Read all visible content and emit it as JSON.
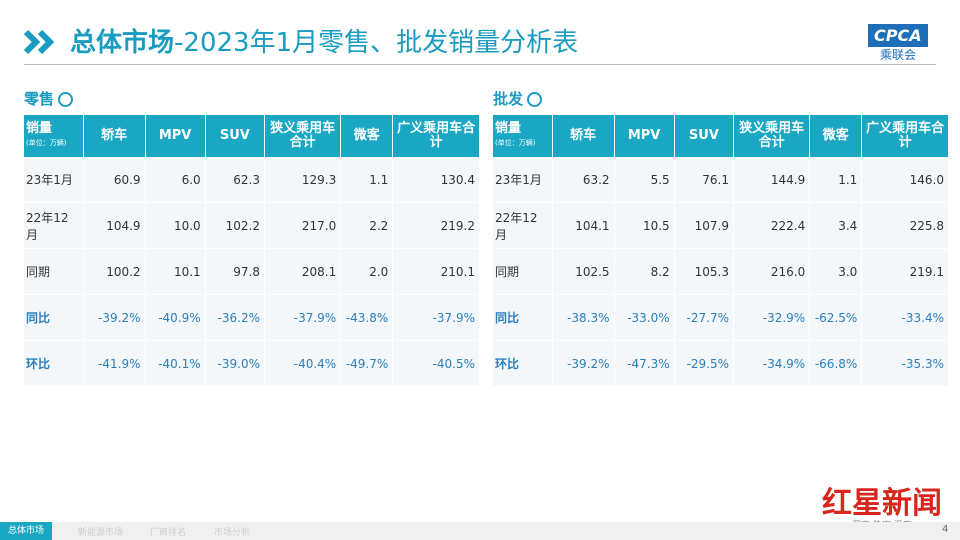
{
  "header": {
    "title_bold": "总体市场",
    "title_rest": "-2023年1月零售、批发销量分析表",
    "logo": "CPCA",
    "logo_sub": "乘联会"
  },
  "tables": [
    {
      "label": "零售",
      "columns": [
        "销量",
        "轿车",
        "MPV",
        "SUV",
        "狭义乘用车合计",
        "微客",
        "广义乘用车合计"
      ],
      "unit": "(单位：万辆)",
      "rows": [
        [
          "23年1月",
          "60.9",
          "6.0",
          "62.3",
          "129.3",
          "1.1",
          "130.4"
        ],
        [
          "22年12月",
          "104.9",
          "10.0",
          "102.2",
          "217.0",
          "2.2",
          "219.2"
        ],
        [
          "同期",
          "100.2",
          "10.1",
          "97.8",
          "208.1",
          "2.0",
          "210.1"
        ],
        [
          "同比",
          "-39.2%",
          "-40.9%",
          "-36.2%",
          "-37.9%",
          "-43.8%",
          "-37.9%"
        ],
        [
          "环比",
          "-41.9%",
          "-40.1%",
          "-39.0%",
          "-40.4%",
          "-49.7%",
          "-40.5%"
        ]
      ]
    },
    {
      "label": "批发",
      "columns": [
        "销量",
        "轿车",
        "MPV",
        "SUV",
        "狭义乘用车合计",
        "微客",
        "广义乘用车合计"
      ],
      "unit": "(单位：万辆)",
      "rows": [
        [
          "23年1月",
          "63.2",
          "5.5",
          "76.1",
          "144.9",
          "1.1",
          "146.0"
        ],
        [
          "22年12月",
          "104.1",
          "10.5",
          "107.9",
          "222.4",
          "3.4",
          "225.8"
        ],
        [
          "同期",
          "102.5",
          "8.2",
          "105.3",
          "216.0",
          "3.0",
          "219.1"
        ],
        [
          "同比",
          "-38.3%",
          "-33.0%",
          "-27.7%",
          "-32.9%",
          "-62.5%",
          "-33.4%"
        ],
        [
          "环比",
          "-39.2%",
          "-47.3%",
          "-29.5%",
          "-34.9%",
          "-66.8%",
          "-35.3%"
        ]
      ]
    }
  ],
  "footer": {
    "nav": [
      "总体市场",
      "新能源市场",
      "厂商排名",
      "市场分析"
    ],
    "page": "4",
    "watermark": "红星新闻",
    "slogan": "深度 热度 温度"
  }
}
